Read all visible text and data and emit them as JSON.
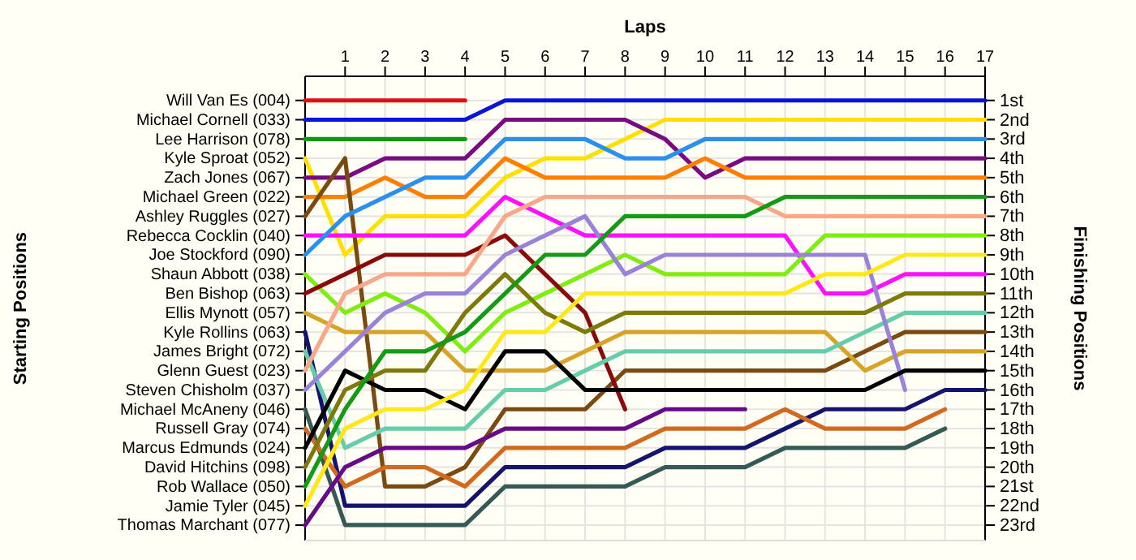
{
  "chart_data": {
    "type": "line",
    "xlabel": "Laps",
    "annotations": [
      "Starting Positions"
    ],
    "y2label": "Finishing Positions",
    "x": [
      0,
      1,
      2,
      3,
      4,
      5,
      6,
      7,
      8,
      9,
      10,
      11,
      12,
      13,
      14,
      15,
      16,
      17
    ],
    "xlim": [
      0,
      17
    ],
    "xticks": [
      1,
      2,
      3,
      4,
      5,
      6,
      7,
      8,
      9,
      10,
      11,
      12,
      13,
      14,
      15,
      16,
      17
    ],
    "y_categories": [
      "Will Van Es (004)",
      "Michael Cornell (033)",
      "Lee Harrison (078)",
      "Kyle Sproat (052)",
      "Zach Jones (067)",
      "Michael Green (022)",
      "Ashley Ruggles (027)",
      "Rebecca Cocklin (040)",
      "Joe Stockford (090)",
      "Shaun Abbott (038)",
      "Ben Bishop (063)",
      "Ellis Mynott (057)",
      "Kyle Rollins (063)",
      "James Bright (072)",
      "Glenn Guest (023)",
      "Steven Chisholm (037)",
      "Michael McAneny (046)",
      "Russell Gray (074)",
      "Marcus Edmunds (024)",
      "David Hitchins (098)",
      "Rob Wallace (050)",
      "Jamie Tyler (045)",
      "Thomas Marchant (077)"
    ],
    "y2lim": [
      23.8,
      -0.25
    ],
    "y2ticks": [
      {
        "value": 1,
        "label": "1st"
      },
      {
        "value": 2,
        "label": "2nd"
      },
      {
        "value": 3,
        "label": "3rd"
      },
      {
        "value": 4,
        "label": "4th"
      },
      {
        "value": 5,
        "label": "5th"
      },
      {
        "value": 6,
        "label": "6th"
      },
      {
        "value": 7,
        "label": "7th"
      },
      {
        "value": 8,
        "label": "8th"
      },
      {
        "value": 9,
        "label": "9th"
      },
      {
        "value": 10,
        "label": "10th"
      },
      {
        "value": 11,
        "label": "11th"
      },
      {
        "value": 12,
        "label": "12th"
      },
      {
        "value": 13,
        "label": "13th"
      },
      {
        "value": 14,
        "label": "14th"
      },
      {
        "value": 15,
        "label": "15th"
      },
      {
        "value": 16,
        "label": "16th"
      },
      {
        "value": 17,
        "label": "17th"
      },
      {
        "value": 18,
        "label": "18th"
      },
      {
        "value": 19,
        "label": "19th"
      },
      {
        "value": 20,
        "label": "20th"
      },
      {
        "value": 21,
        "label": "21st"
      },
      {
        "value": 22,
        "label": "22nd"
      },
      {
        "value": 23,
        "label": "23rd"
      }
    ],
    "grid": true,
    "marker": "none",
    "line_style": "solid",
    "series": [
      {
        "color": "#dd1111",
        "axis": "y2",
        "values": [
          1,
          1,
          1,
          1,
          1,
          null,
          null,
          null,
          null,
          null,
          null,
          null,
          null,
          null,
          null,
          null,
          null,
          null
        ]
      },
      {
        "color": "#0a14d8",
        "axis": "y2",
        "values": [
          2,
          2,
          2,
          2,
          2,
          1,
          1,
          1,
          1,
          1,
          1,
          1,
          1,
          1,
          1,
          1,
          1,
          1
        ]
      },
      {
        "color": "#0a9a0a",
        "axis": "y2",
        "values": [
          3,
          3,
          3,
          3,
          3,
          null,
          null,
          null,
          null,
          null,
          null,
          null,
          null,
          null,
          null,
          null,
          null,
          null
        ]
      },
      {
        "color": "#ffe000",
        "axis": "y2",
        "values": [
          4,
          9,
          7,
          7,
          7,
          5,
          4,
          4,
          3,
          2,
          2,
          2,
          2,
          2,
          2,
          2,
          2,
          2
        ]
      },
      {
        "color": "#7a0a82",
        "axis": "y2",
        "values": [
          5,
          5,
          4,
          4,
          4,
          2,
          2,
          2,
          2,
          3,
          5,
          4,
          4,
          4,
          4,
          4,
          4,
          4
        ]
      },
      {
        "color": "#ff8000",
        "axis": "y2",
        "values": [
          6,
          6,
          5,
          6,
          6,
          4,
          5,
          5,
          5,
          5,
          4,
          5,
          5,
          5,
          5,
          5,
          5,
          5
        ]
      },
      {
        "color": "#7a4a10",
        "axis": "y2",
        "values": [
          7,
          4,
          21,
          21,
          20,
          17,
          17,
          17,
          15,
          15,
          15,
          15,
          15,
          15,
          14,
          13,
          13,
          13
        ]
      },
      {
        "color": "#ff10ff",
        "axis": "y2",
        "values": [
          8,
          8,
          8,
          8,
          8,
          6,
          7,
          8,
          8,
          8,
          8,
          8,
          8,
          11,
          11,
          10,
          10,
          10
        ]
      },
      {
        "color": "#2a90f0",
        "axis": "y2",
        "values": [
          9,
          7,
          6,
          5,
          5,
          3,
          3,
          3,
          4,
          4,
          3,
          3,
          3,
          3,
          3,
          3,
          3,
          3
        ]
      },
      {
        "color": "#80ec10",
        "axis": "y2",
        "values": [
          10,
          12,
          11,
          12,
          14,
          12,
          11,
          10,
          9,
          10,
          10,
          10,
          10,
          8,
          8,
          8,
          8,
          8
        ]
      },
      {
        "color": "#8a0a0a",
        "axis": "y2",
        "values": [
          11,
          10,
          9,
          9,
          9,
          8,
          10,
          12,
          17,
          null,
          null,
          null,
          null,
          null,
          null,
          null,
          null,
          null
        ]
      },
      {
        "color": "#d8a428",
        "axis": "y2",
        "values": [
          12,
          13,
          13,
          13,
          15,
          15,
          15,
          14,
          13,
          13,
          13,
          13,
          13,
          13,
          15,
          14,
          14,
          14
        ]
      },
      {
        "color": "#14146e",
        "axis": "y2",
        "values": [
          13,
          22,
          22,
          22,
          22,
          20,
          20,
          20,
          20,
          19,
          19,
          19,
          18,
          17,
          17,
          17,
          16,
          16
        ]
      },
      {
        "color": "#66cdaa",
        "axis": "y2",
        "values": [
          14,
          19,
          18,
          18,
          18,
          16,
          16,
          15,
          14,
          14,
          14,
          14,
          14,
          14,
          13,
          12,
          12,
          12
        ]
      },
      {
        "color": "#f8a888",
        "axis": "y2",
        "values": [
          15,
          11,
          10,
          10,
          10,
          7,
          6,
          6,
          6,
          6,
          6,
          6,
          7,
          7,
          7,
          7,
          7,
          7
        ]
      },
      {
        "color": "#9a82d8",
        "axis": "y2",
        "values": [
          16,
          14,
          12,
          11,
          11,
          9,
          8,
          7,
          10,
          9,
          9,
          9,
          9,
          9,
          9,
          16,
          null,
          null
        ]
      },
      {
        "color": "#355a55",
        "axis": "y2",
        "values": [
          17,
          23,
          23,
          23,
          23,
          21,
          21,
          21,
          21,
          20,
          20,
          20,
          19,
          19,
          19,
          19,
          18,
          null
        ]
      },
      {
        "color": "#d2691e",
        "axis": "y2",
        "values": [
          18,
          21,
          20,
          20,
          21,
          19,
          19,
          19,
          19,
          18,
          18,
          18,
          17,
          18,
          18,
          18,
          17,
          null
        ]
      },
      {
        "color": "#000000",
        "axis": "y2",
        "values": [
          19,
          15,
          16,
          16,
          17,
          14,
          14,
          16,
          16,
          16,
          16,
          16,
          16,
          16,
          16,
          15,
          15,
          15
        ]
      },
      {
        "color": "#7e7a0a",
        "axis": "y2",
        "values": [
          20,
          16,
          15,
          15,
          12,
          10,
          12,
          13,
          12,
          12,
          12,
          12,
          12,
          12,
          12,
          11,
          11,
          11
        ]
      },
      {
        "color": "#149a14",
        "axis": "y2",
        "values": [
          21,
          17,
          14,
          14,
          13,
          11,
          9,
          9,
          7,
          7,
          7,
          7,
          6,
          6,
          6,
          6,
          6,
          6
        ]
      },
      {
        "color": "#ffe81a",
        "axis": "y2",
        "values": [
          22,
          18,
          17,
          17,
          16,
          13,
          13,
          11,
          11,
          11,
          11,
          11,
          11,
          10,
          10,
          9,
          9,
          9
        ]
      },
      {
        "color": "#680a88",
        "axis": "y2",
        "values": [
          23,
          20,
          19,
          19,
          19,
          18,
          18,
          18,
          18,
          17,
          17,
          17,
          null,
          null,
          null,
          null,
          null,
          null
        ]
      }
    ]
  }
}
